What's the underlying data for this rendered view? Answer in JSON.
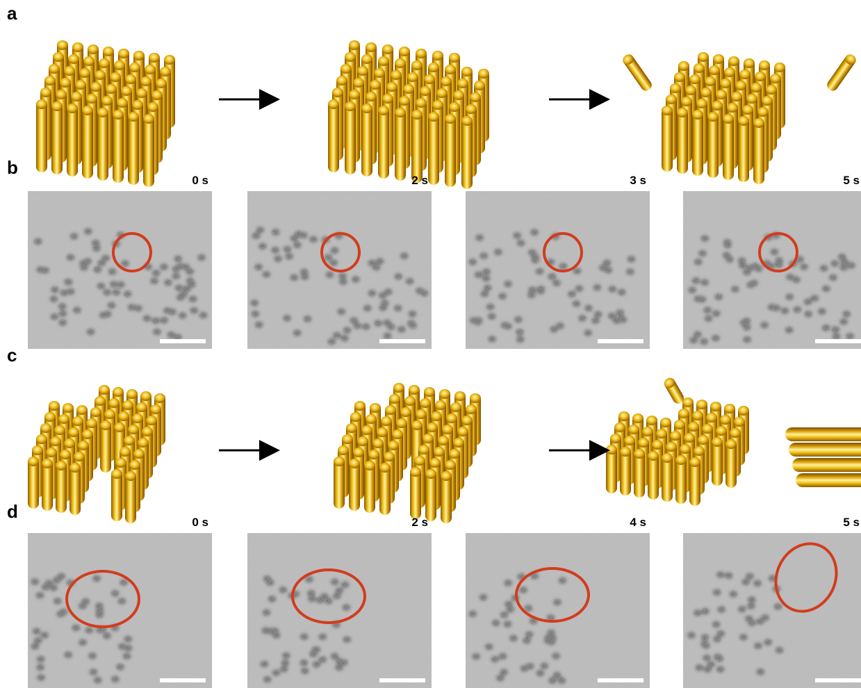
{
  "panels": [
    {
      "label": "a"
    },
    {
      "label": "b",
      "frames": [
        "0 s",
        "2 s",
        "3 s",
        "5 s"
      ]
    },
    {
      "label": "c"
    },
    {
      "label": "d",
      "frames": [
        "0 s",
        "2 s",
        "4 s",
        "5 s"
      ]
    }
  ]
}
